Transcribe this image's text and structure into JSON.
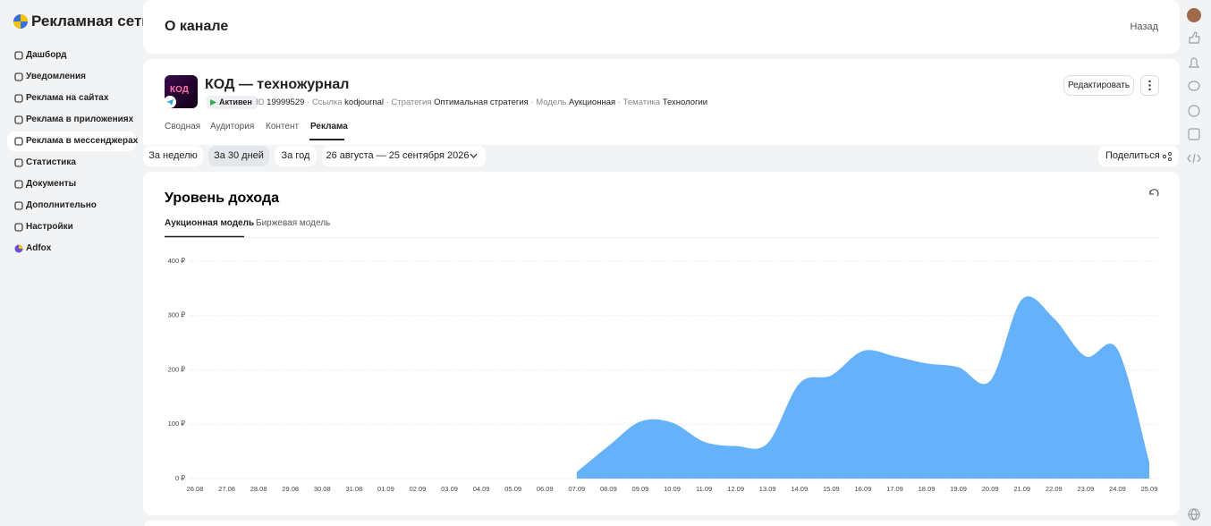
{
  "sidebar": {
    "logo": "Рекламная сеть",
    "items": [
      "Дашборд",
      "Уведомления",
      "Реклама на сайтах",
      "Реклама в приложениях",
      "Реклама в мессенджерах",
      "Статистика",
      "Документы",
      "Дополнительно",
      "Настройки",
      "Adfox"
    ]
  },
  "header": {
    "title": "О канале",
    "back": "Назад"
  },
  "channel": {
    "avatar_text": "КОД",
    "name": "КОД — техножурнал",
    "status": "Активен",
    "id_label": "ID",
    "id": "19999529",
    "link_label": "Ссылка",
    "link": "kodjournal",
    "strategy_label": "Стратегия",
    "strategy": "Оптимальная стратегия",
    "model_label": "Модель",
    "model": "Аукционная",
    "topic_label": "Тематика",
    "topic": "Технологии",
    "edit": "Редактировать",
    "tabs": [
      "Сводная",
      "Аудитория",
      "Контент",
      "Реклама"
    ]
  },
  "periods": [
    "За неделю",
    "За 30 дней",
    "За год"
  ],
  "date_range": "26 августа — 25 сентября 2026",
  "share": "Поделиться",
  "chart_tabs": [
    "Аукционная модель",
    "Биржевая модель"
  ],
  "chart_data": {
    "type": "area",
    "title": "Уровень дохода",
    "categories": [
      "26.08",
      "27.08",
      "28.08",
      "29.08",
      "30.08",
      "31.08",
      "01.09",
      "02.09",
      "03.09",
      "04.09",
      "05.09",
      "06.09",
      "07.09",
      "08.09",
      "09.09",
      "10.09",
      "11.09",
      "12.09",
      "13.09",
      "14.09",
      "15.09",
      "16.09",
      "17.09",
      "18.09",
      "19.09",
      "20.09",
      "21.09",
      "22.09",
      "23.09",
      "24.09",
      "25.09"
    ],
    "values": [
      null,
      null,
      null,
      null,
      null,
      null,
      null,
      null,
      null,
      null,
      null,
      null,
      12,
      60,
      105,
      103,
      68,
      60,
      65,
      175,
      190,
      235,
      225,
      212,
      205,
      180,
      330,
      295,
      225,
      238,
      30
    ],
    "color": "#66b2fa",
    "ylim": [
      0,
      400
    ],
    "yticks": [
      {
        "value": 0,
        "label": "0 ₽"
      },
      {
        "value": 100,
        "label": "100 ₽"
      },
      {
        "value": 200,
        "label": "200 ₽"
      },
      {
        "value": 300,
        "label": "300 ₽"
      },
      {
        "value": 400,
        "label": "400 ₽"
      }
    ],
    "grid": true
  }
}
